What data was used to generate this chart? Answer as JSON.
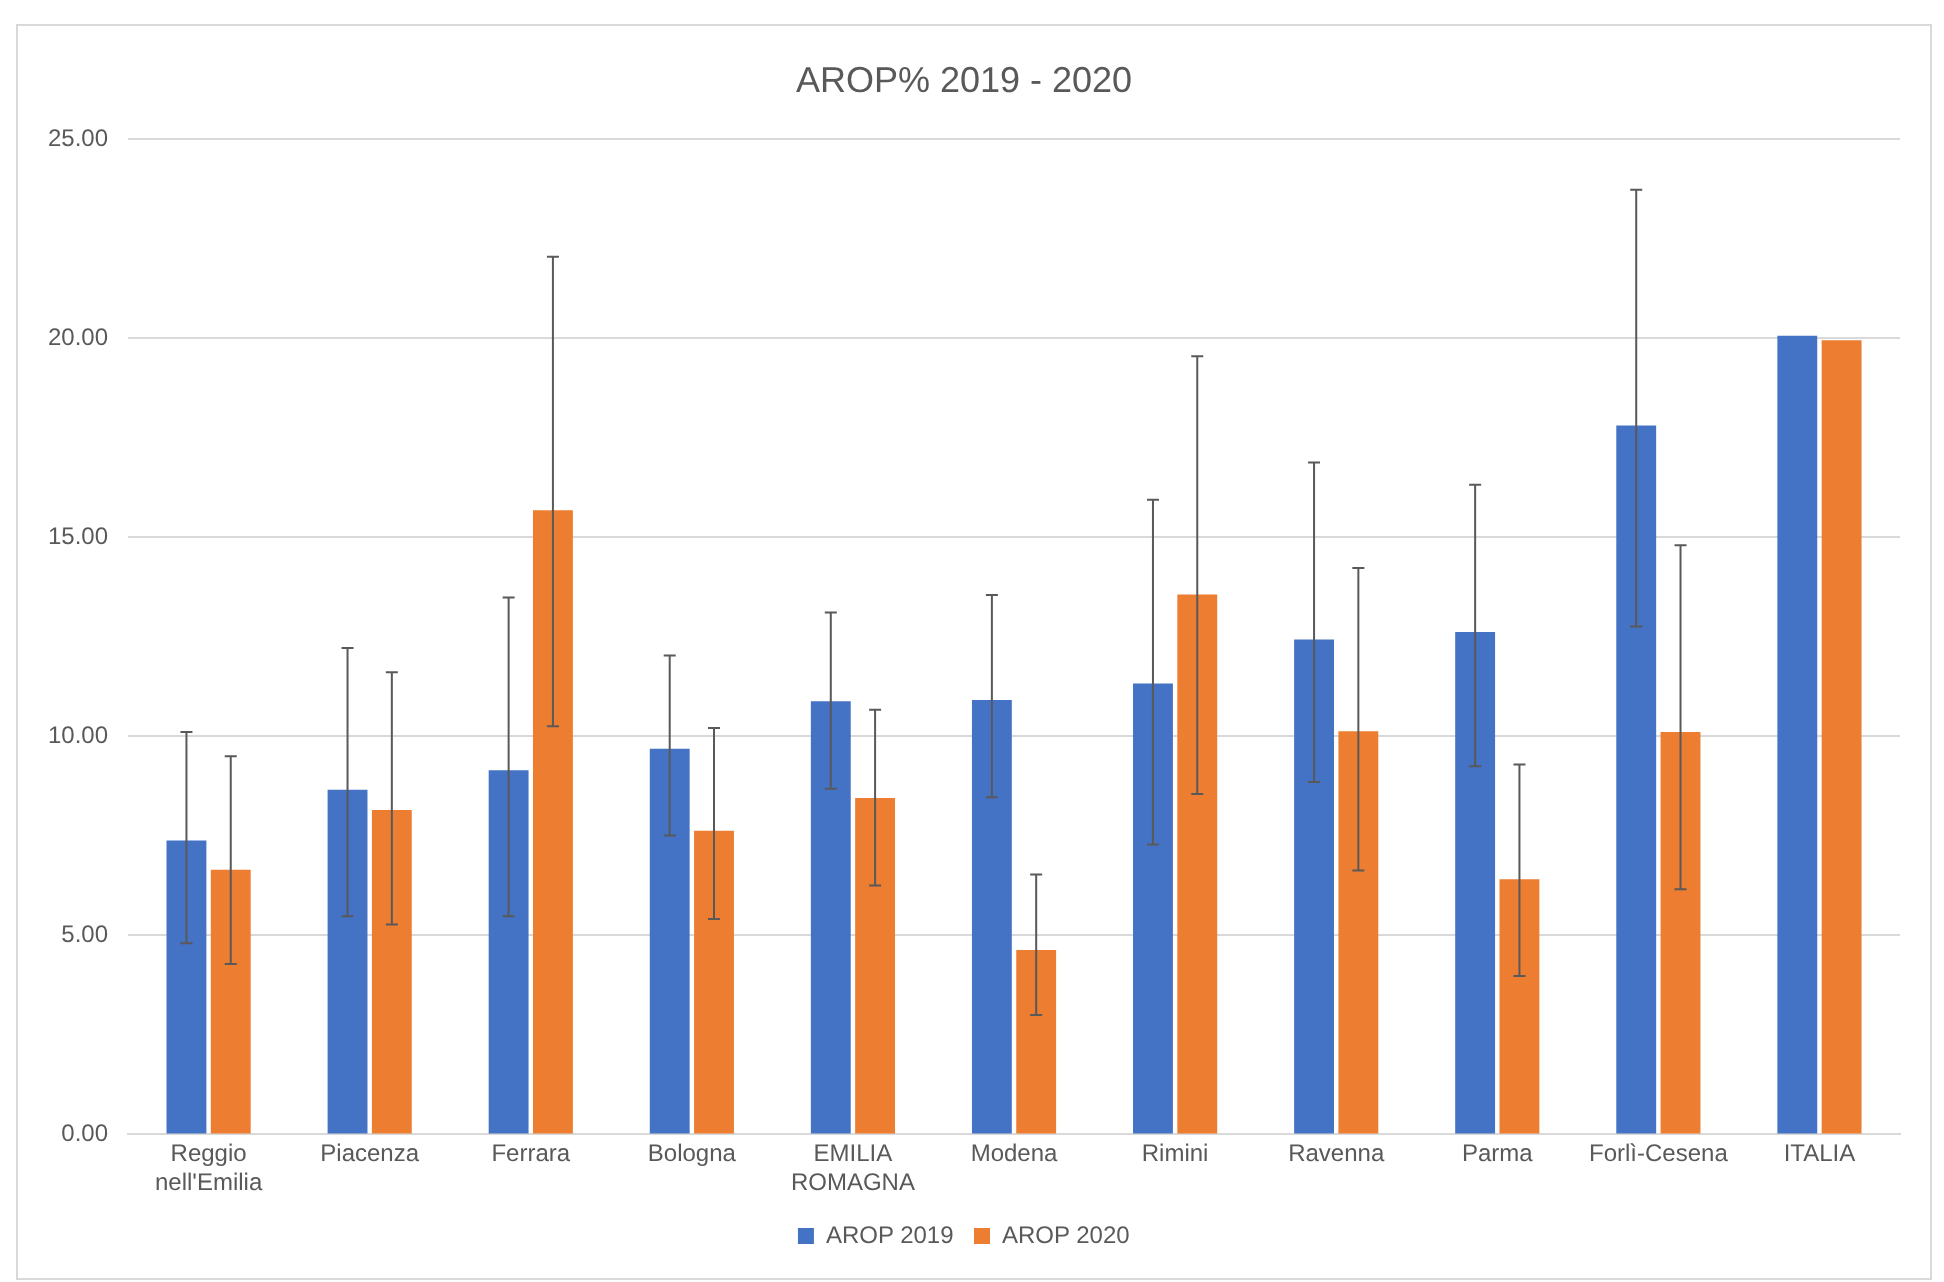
{
  "chart_data": {
    "type": "bar",
    "title": "AROP% 2019 - 2020",
    "categories": [
      "Reggio nell'Emilia",
      "Piacenza",
      "Ferrara",
      "Bologna",
      "EMILIA ROMAGNA",
      "Modena",
      "Rimini",
      "Ravenna",
      "Parma",
      "Forlì-Cesena",
      "ITALIA"
    ],
    "series": [
      {
        "name": "AROP 2019",
        "color": "#4472c4",
        "values": [
          7.38,
          8.66,
          9.15,
          9.69,
          10.88,
          10.91,
          11.33,
          12.43,
          12.62,
          17.81,
          20.06
        ],
        "errors": [
          [
            4.8,
            10.11
          ],
          [
            5.48,
            12.22
          ],
          [
            5.48,
            13.49
          ],
          [
            7.51,
            12.03
          ],
          [
            8.68,
            13.11
          ],
          [
            8.47,
            13.55
          ],
          [
            7.28,
            15.94
          ],
          [
            8.85,
            16.88
          ],
          [
            9.25,
            16.32
          ],
          [
            12.76,
            23.73
          ],
          null
        ]
      },
      {
        "name": "AROP 2020",
        "color": "#ed7d31",
        "values": [
          6.65,
          8.15,
          15.68,
          7.63,
          8.45,
          4.63,
          13.56,
          10.13,
          6.41,
          10.11,
          19.95
        ],
        "errors": [
          [
            4.28,
            9.5
          ],
          [
            5.27,
            11.61
          ],
          [
            10.25,
            22.05
          ],
          [
            5.41,
            10.21
          ],
          [
            6.25,
            10.67
          ],
          [
            3.0,
            6.53
          ],
          [
            8.55,
            19.55
          ],
          [
            6.63,
            14.23
          ],
          [
            3.98,
            9.29
          ],
          [
            6.16,
            14.8
          ],
          null
        ]
      }
    ],
    "ylim": [
      0,
      25
    ],
    "yticks": [
      {
        "value": 0,
        "label": "0.00"
      },
      {
        "value": 5,
        "label": "5.00"
      },
      {
        "value": 10,
        "label": "10.00"
      },
      {
        "value": 15,
        "label": "15.00"
      },
      {
        "value": 20,
        "label": "20.00"
      },
      {
        "value": 25,
        "label": "25.00"
      }
    ],
    "grid": "y",
    "legend": "bottom"
  }
}
